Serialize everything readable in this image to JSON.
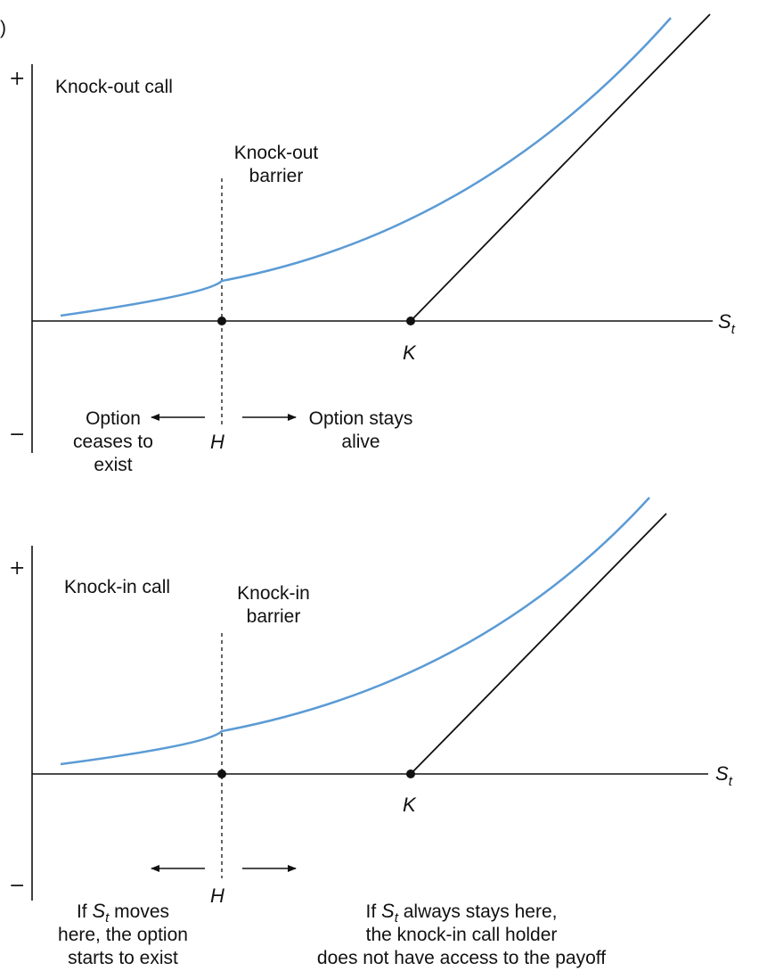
{
  "colors": {
    "curve": "#5b9bd5",
    "line": "#111111"
  },
  "figure_marker": ")",
  "top": {
    "plus": "+",
    "minus": "−",
    "title": "Knock-out call",
    "barrier_label": [
      "Knock-out",
      "barrier"
    ],
    "axis_label": "S",
    "axis_sub": "t",
    "k_label": "K",
    "h_label": "H",
    "left_note": [
      "Option",
      "ceases to",
      "exist"
    ],
    "right_note": [
      "Option stays",
      "alive"
    ]
  },
  "bottom": {
    "plus": "+",
    "minus": "−",
    "title": "Knock-in call",
    "barrier_label": [
      "Knock-in",
      "barrier"
    ],
    "axis_label": "S",
    "axis_sub": "t",
    "k_label": "K",
    "h_label": "H",
    "left_note": {
      "l1_pre": "If ",
      "l1_sym": "S",
      "l1_sub": "t",
      "l1_post": " moves",
      "l2": "here, the option",
      "l3": "starts to exist"
    },
    "right_note": {
      "l1_pre": "If ",
      "l1_sym": "S",
      "l1_sub": "t",
      "l1_post": " always stays here,",
      "l2": "the knock-in call holder",
      "l3": "does not have access to the payoff"
    }
  }
}
